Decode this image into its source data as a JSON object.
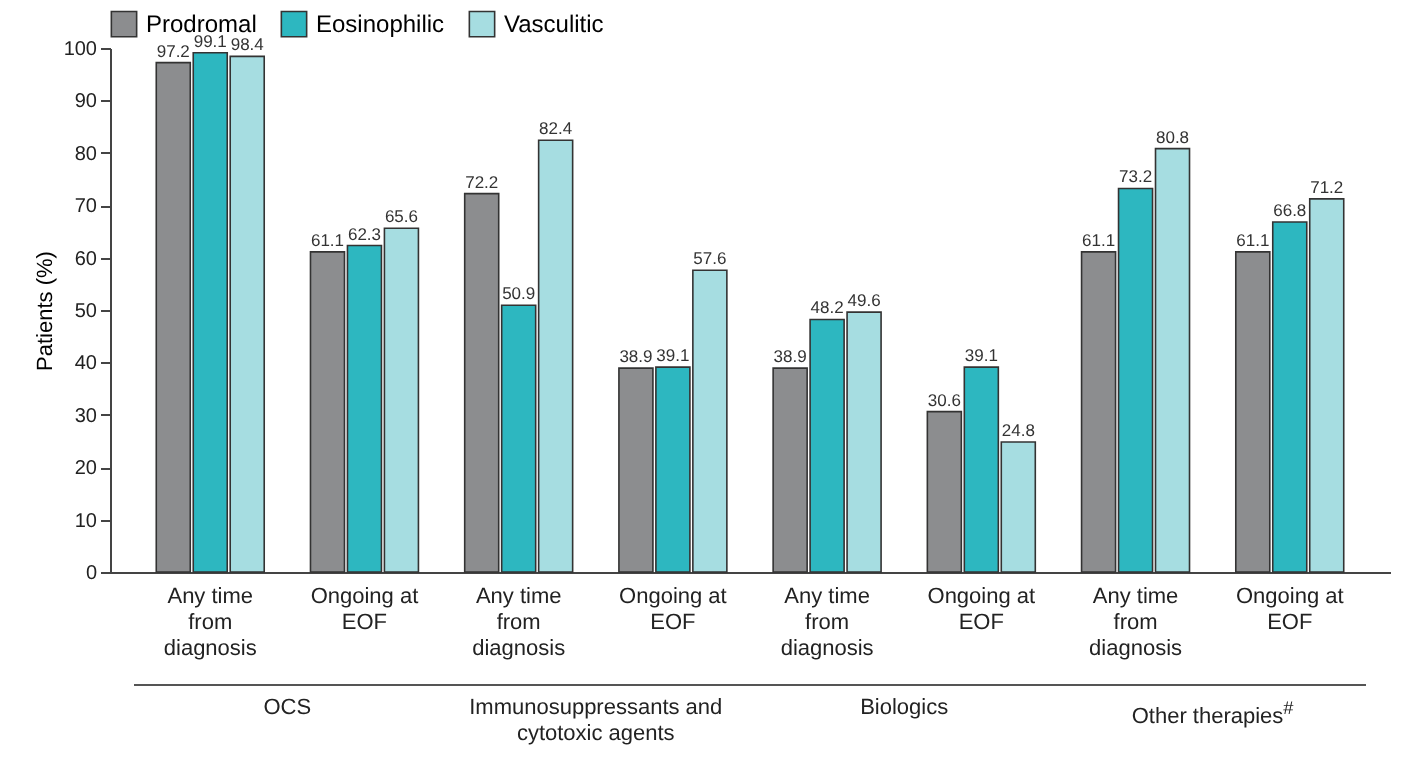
{
  "chart_data": {
    "type": "bar",
    "ylabel": "Patients (%)",
    "categories": [
      "Any time from diagnosis",
      "Ongoing at EOF",
      "Any time from diagnosis",
      "Ongoing at EOF",
      "Any time from diagnosis",
      "Ongoing at EOF",
      "Any time from diagnosis",
      "Ongoing at EOF"
    ],
    "series": [
      {
        "name": "Prodromal",
        "color": "#8c8d8f",
        "values": [
          97.2,
          61.1,
          72.2,
          38.9,
          38.9,
          30.6,
          61.1,
          61.1
        ]
      },
      {
        "name": "Eosinophilic",
        "color": "#2db7c0",
        "values": [
          99.1,
          62.3,
          50.9,
          39.1,
          48.2,
          39.1,
          73.2,
          66.8
        ]
      },
      {
        "name": "Vasculitic",
        "color": "#a6dde1",
        "values": [
          98.4,
          65.6,
          82.4,
          57.6,
          49.6,
          24.8,
          80.8,
          71.2
        ]
      }
    ],
    "annotations": [
      "OCS",
      "Immunosuppressants and cytotoxic agents",
      "Biologics",
      "Other therapies$^{#}$"
    ],
    "ylim": [
      0,
      100
    ],
    "yticks": [
      0,
      10,
      20,
      30,
      40,
      50,
      60,
      70,
      80,
      90,
      100
    ],
    "data_labels": true,
    "legend": "top",
    "grid": false
  }
}
